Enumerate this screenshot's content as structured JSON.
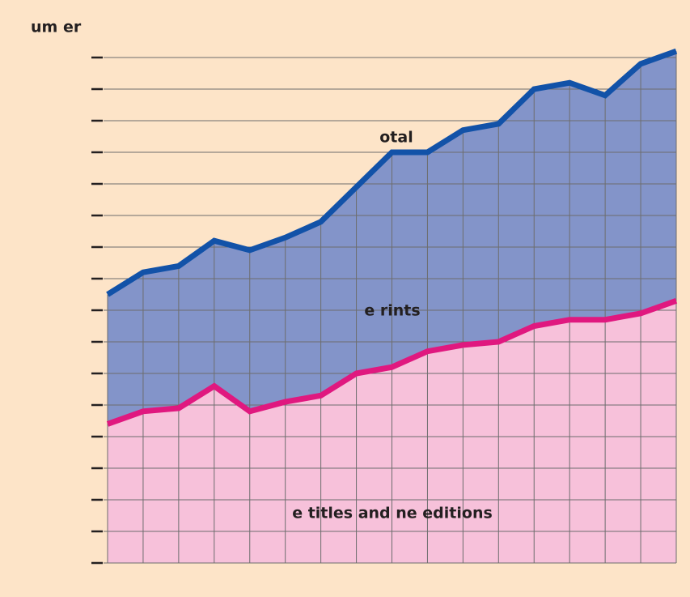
{
  "chart_data": {
    "type": "stacked_area",
    "y_label": "um er",
    "annotations": [
      "otal"
    ],
    "categories": [
      null,
      null,
      null,
      null,
      null,
      null,
      null,
      null,
      null,
      null,
      null,
      null,
      null,
      null,
      null,
      null,
      null
    ],
    "series": [
      {
        "name": "e titles and ne editions",
        "color": "#f7c1da",
        "line_color": "#e0187f",
        "values": [
          4.4,
          4.8,
          4.9,
          5.6,
          4.8,
          5.1,
          5.3,
          6.0,
          6.2,
          6.7,
          6.9,
          7.0,
          7.5,
          7.7,
          7.7,
          7.9,
          8.3
        ]
      },
      {
        "name": "e rints",
        "color": "#8394c9",
        "line_color": "#1252a8",
        "values": [
          4.1,
          4.4,
          4.5,
          4.6,
          5.1,
          5.2,
          5.5,
          5.9,
          6.8,
          6.3,
          6.8,
          6.9,
          7.5,
          7.5,
          7.1,
          7.9,
          7.9
        ]
      }
    ],
    "ylim": [
      0,
      16
    ],
    "yticks": [
      0,
      1,
      2,
      3,
      4,
      5,
      6,
      7,
      8,
      9,
      10,
      11,
      12,
      13,
      14,
      15,
      16
    ],
    "grid": true,
    "background": "#fde4c8"
  }
}
